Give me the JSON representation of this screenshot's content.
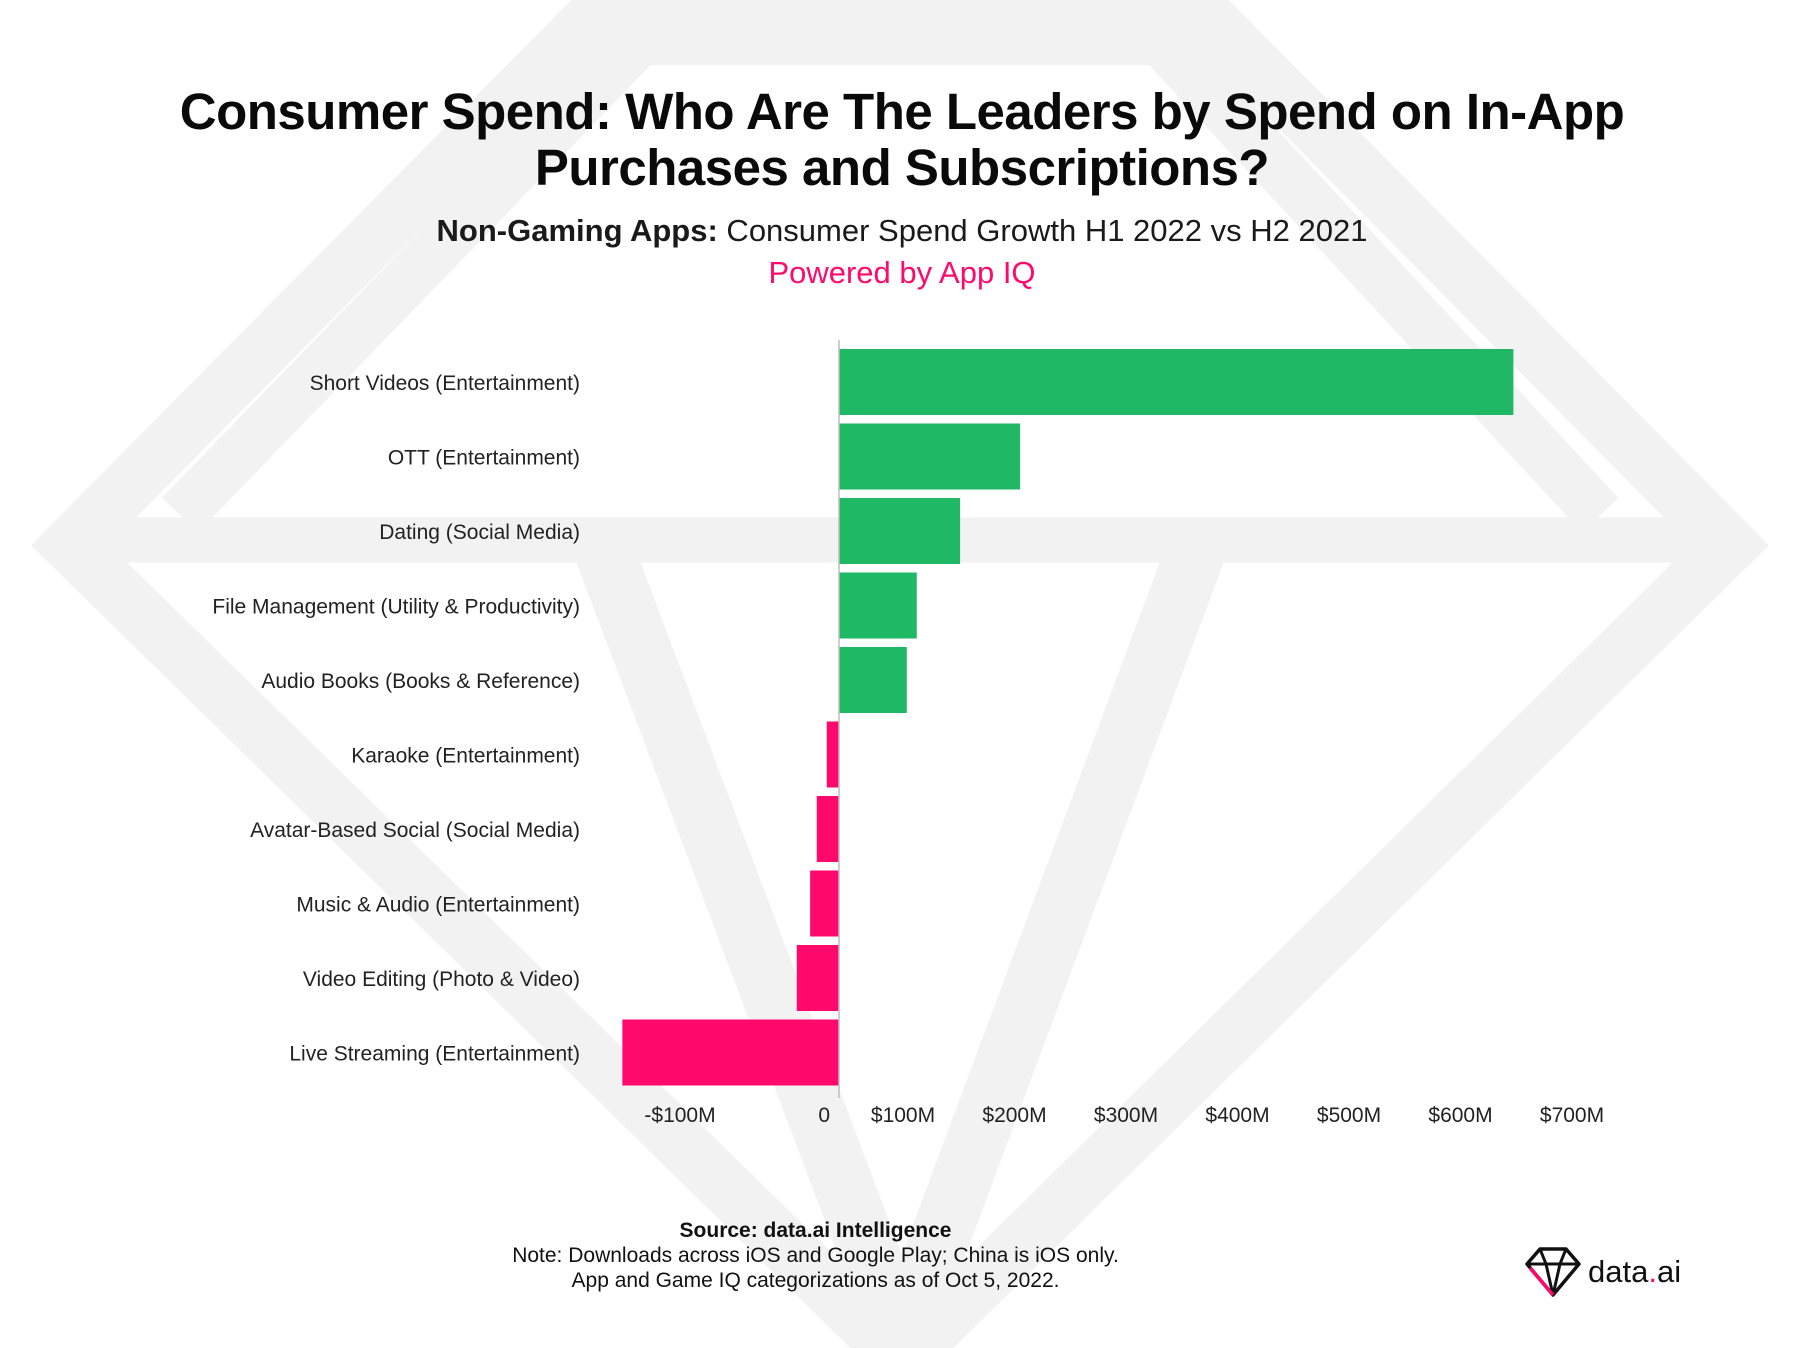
{
  "title_line1": "Consumer Spend: Who Are The Leaders by Spend on In-App",
  "title_line2": "Purchases and Subscriptions?",
  "subtitle_bold": "Non-Gaming Apps:",
  "subtitle_rest": " Consumer Spend Growth H1 2022 vs H2 2021",
  "powered_by": "Powered by App IQ",
  "footer": {
    "source": "Source: data.ai Intelligence",
    "note": "Note: Downloads across iOS and Google Play; China is iOS only.",
    "categorization": "App and Game IQ categorizations as of Oct 5, 2022."
  },
  "logo_text_main": "data",
  "logo_text_dot": ".",
  "logo_text_end": "ai",
  "colors": {
    "positive": "#1fb864",
    "negative": "#ff0a6c",
    "accent": "#ff0a6c",
    "watermark": "#f2f2f2"
  },
  "chart_data": {
    "type": "bar",
    "orientation": "horizontal",
    "title": "Non-Gaming Apps: Consumer Spend Growth H1 2022 vs H2 2021",
    "xlabel": "",
    "ylabel": "",
    "xlim": [
      -200,
      700
    ],
    "categories": [
      "Short Videos (Entertainment)",
      "OTT (Entertainment)",
      "Dating (Social Media)",
      "File Management (Utility & Productivity)",
      "Audio Books (Books & Reference)",
      "Karaoke (Entertainment)",
      "Avatar-Based Social (Social Media)",
      "Music & Audio (Entertainment)",
      "Video Editing (Photo & Video)",
      "Live Streaming (Entertainment)"
    ],
    "values": [
      607,
      163,
      109,
      70,
      61,
      -11,
      -20,
      -26,
      -38,
      -195
    ],
    "ticks": [
      -100,
      0,
      100,
      200,
      300,
      400,
      500,
      600,
      700
    ],
    "tick_labels": [
      "-$100M",
      "0",
      "$100M",
      "$200M",
      "$300M",
      "$400M",
      "$500M",
      "$600M",
      "$700M"
    ],
    "grid": false,
    "legend": "none"
  }
}
